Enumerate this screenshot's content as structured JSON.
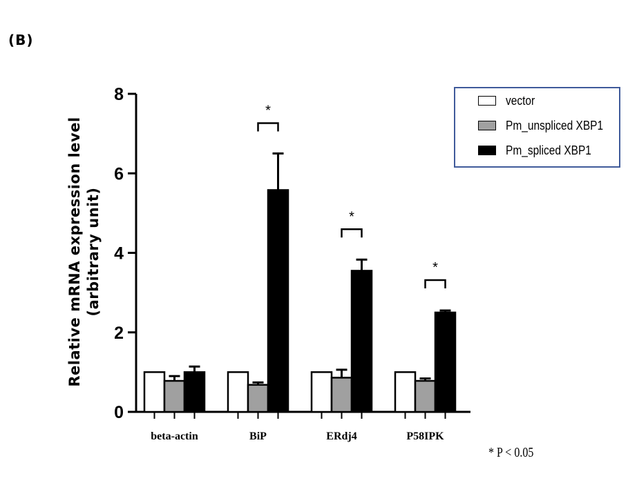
{
  "panel_label": "(B)",
  "footnote": "* P < 0.05",
  "legend": {
    "items": [
      {
        "label": "vector",
        "color": "#ffffff"
      },
      {
        "label": "Pm_unspliced XBP1",
        "color": "#a0a0a0"
      },
      {
        "label": "Pm_spliced XBP1",
        "color": "#000000"
      }
    ]
  },
  "chart_data": {
    "type": "bar",
    "title": "",
    "xlabel": "",
    "ylabel_lines": [
      "Relative mRNA expression level",
      "(arbitrary unit)"
    ],
    "ylim": [
      0,
      8
    ],
    "yticks": [
      "0",
      "2",
      "4",
      "6",
      "8"
    ],
    "grid": false,
    "legend_position": "top-right",
    "categories": [
      "beta-actin",
      "BiP",
      "ERdj4",
      "P58IPK"
    ],
    "series": [
      {
        "name": "vector",
        "color": "#ffffff",
        "values": [
          1.0,
          1.0,
          1.0,
          1.0
        ],
        "errors": [
          0.0,
          0.0,
          0.0,
          0.0
        ]
      },
      {
        "name": "Pm_unspliced XBP1",
        "color": "#a0a0a0",
        "values": [
          0.78,
          0.68,
          0.86,
          0.78
        ],
        "errors": [
          0.12,
          0.06,
          0.2,
          0.06
        ]
      },
      {
        "name": "Pm_spliced XBP1",
        "color": "#000000",
        "values": [
          1.0,
          5.58,
          3.55,
          2.5
        ],
        "errors": [
          0.14,
          0.92,
          0.28,
          0.05
        ]
      }
    ],
    "significance": [
      {
        "category": "BiP",
        "label": "*"
      },
      {
        "category": "ERdj4",
        "label": "*"
      },
      {
        "category": "P58IPK",
        "label": "*"
      }
    ]
  }
}
